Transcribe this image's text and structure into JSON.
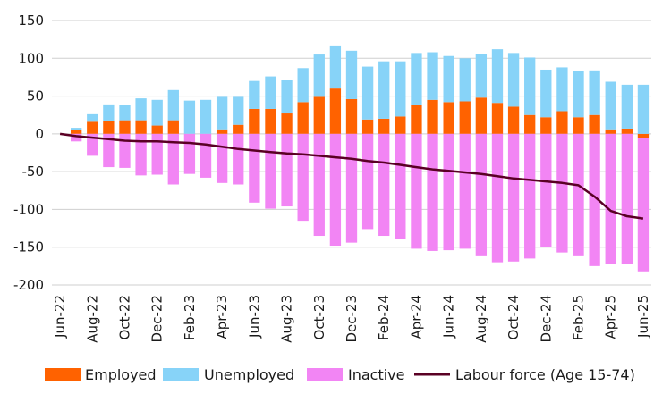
{
  "chart_data": {
    "type": "bar",
    "stacked": true,
    "x": [
      "Jun-22",
      "Jul-22",
      "Aug-22",
      "Sep-22",
      "Oct-22",
      "Nov-22",
      "Dec-22",
      "Jan-23",
      "Feb-23",
      "Mar-23",
      "Apr-23",
      "May-23",
      "Jun-23",
      "Jul-23",
      "Aug-23",
      "Sep-23",
      "Oct-23",
      "Nov-23",
      "Dec-23",
      "Jan-24",
      "Feb-24",
      "Mar-24",
      "Apr-24",
      "May-24",
      "Jun-24",
      "Jul-24",
      "Aug-24",
      "Sep-24",
      "Oct-24",
      "Nov-24",
      "Dec-24",
      "Jan-25",
      "Feb-25",
      "Mar-25",
      "Apr-25",
      "May-25",
      "Jun-25"
    ],
    "x_tick_labels": [
      "Jun-22",
      "Aug-22",
      "Oct-22",
      "Dec-22",
      "Feb-23",
      "Apr-23",
      "Jun-23",
      "Aug-23",
      "Oct-23",
      "Dec-23",
      "Feb-24",
      "Apr-24",
      "Jun-24",
      "Aug-24",
      "Oct-24",
      "Dec-24",
      "Feb-25",
      "Apr-25",
      "Jun-25"
    ],
    "ylim": [
      -200,
      150
    ],
    "y_ticks": [
      150,
      100,
      50,
      0,
      -50,
      -100,
      -150,
      -200
    ],
    "grid": "horizontal",
    "legend_position": "bottom",
    "series": [
      {
        "name": "Employed",
        "kind": "bar",
        "color": "#ff6200",
        "values": [
          0,
          5,
          16,
          17,
          18,
          18,
          11,
          18,
          0,
          0,
          6,
          12,
          33,
          33,
          27,
          42,
          49,
          60,
          46,
          19,
          20,
          23,
          38,
          45,
          42,
          43,
          48,
          41,
          36,
          25,
          22,
          30,
          22,
          25,
          6,
          7,
          -5
        ]
      },
      {
        "name": "Unemployed",
        "kind": "bar",
        "color": "#87d3f8",
        "values": [
          0,
          3,
          10,
          22,
          20,
          29,
          34,
          40,
          44,
          45,
          43,
          37,
          37,
          43,
          44,
          45,
          56,
          57,
          64,
          70,
          76,
          73,
          69,
          63,
          61,
          57,
          58,
          71,
          71,
          76,
          63,
          58,
          61,
          59,
          63,
          58,
          65
        ]
      },
      {
        "name": "Inactive",
        "kind": "bar",
        "color": "#f285f4",
        "values": [
          0,
          -10,
          -29,
          -44,
          -45,
          -55,
          -54,
          -67,
          -53,
          -58,
          -65,
          -67,
          -91,
          -99,
          -96,
          -115,
          -135,
          -148,
          -144,
          -126,
          -135,
          -139,
          -152,
          -155,
          -154,
          -152,
          -162,
          -170,
          -169,
          -165,
          -150,
          -157,
          -162,
          -175,
          -172,
          -172,
          -177
        ]
      },
      {
        "name": "Labour force (Age 15-74)",
        "kind": "line",
        "color": "#5a0024",
        "values": [
          0,
          -3,
          -5,
          -7,
          -9,
          -10,
          -10,
          -11,
          -12,
          -14,
          -17,
          -20,
          -22,
          -24,
          -26,
          -27,
          -29,
          -31,
          -33,
          -36,
          -38,
          -41,
          -44,
          -47,
          -49,
          -51,
          -53,
          -56,
          -59,
          -61,
          -63,
          -65,
          -68,
          -83,
          -102,
          -109,
          -112
        ]
      }
    ]
  }
}
